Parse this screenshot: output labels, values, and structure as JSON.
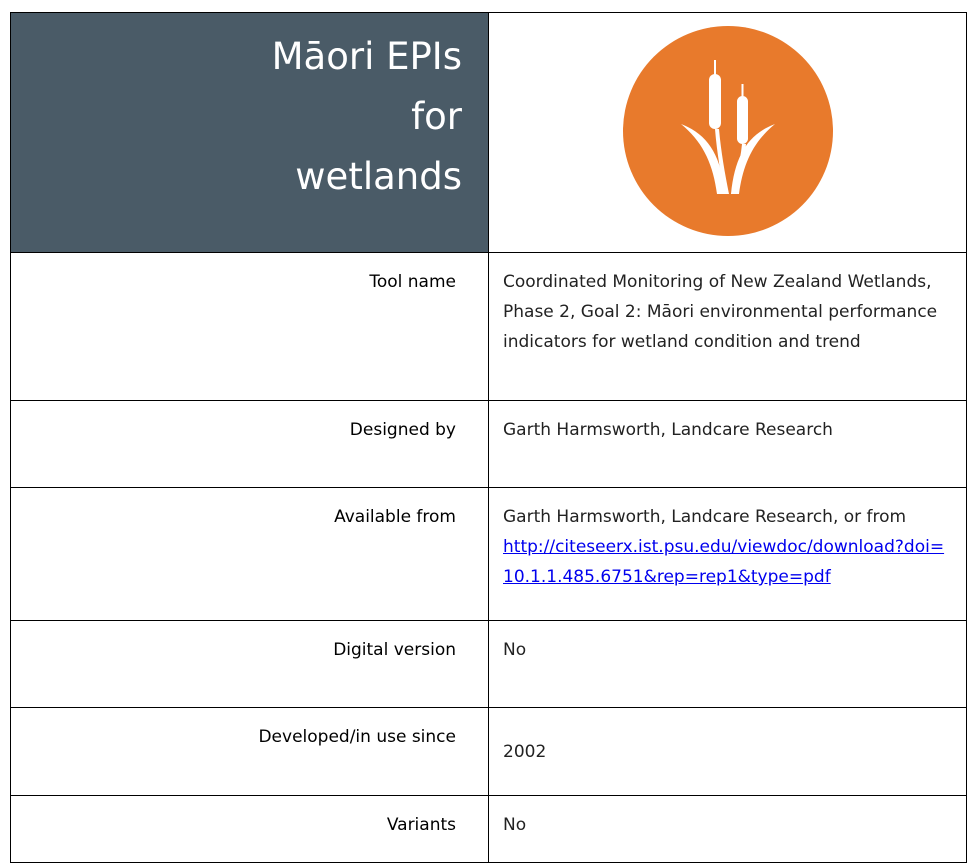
{
  "header": {
    "title_lines": [
      "Māori EPIs",
      "for",
      "wetlands"
    ]
  },
  "table": {
    "rows": [
      {
        "label": "Tool name",
        "value": "Coordinated Monitoring of New Zealand Wetlands, Phase 2, Goal 2: Māori environmental performance indicators for wetland condition and trend"
      },
      {
        "label": "Designed by",
        "value": "Garth Harmsworth, Landcare Research"
      },
      {
        "label": "Available from",
        "value": "Garth Harmsworth, Landcare Research, or from",
        "link": "http://citeseerx.ist.psu.edu/viewdoc/download?doi=10.1.1.485.6751&rep=rep1&type=pdf"
      },
      {
        "label": "Digital version",
        "value": "No"
      },
      {
        "label": "Developed/in use since",
        "value": "2002"
      },
      {
        "label": "Variants",
        "value": "No"
      }
    ]
  }
}
